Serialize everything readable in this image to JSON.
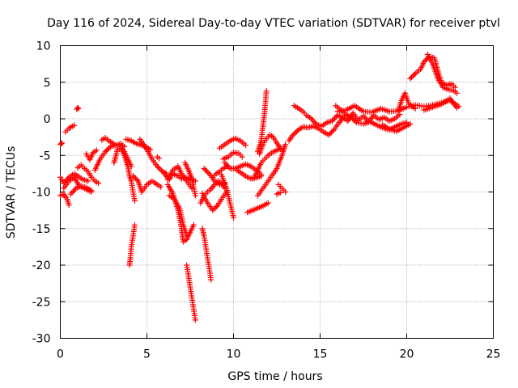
{
  "chart_data": {
    "type": "scatter",
    "title": "Day 116 of 2024, Sidereal Day-to-day VTEC variation (SDTVAR) for receiver ptvl",
    "xlabel": "GPS time / hours",
    "ylabel": "SDTVAR / TECUs",
    "xlim": [
      0,
      25
    ],
    "ylim": [
      -30,
      10
    ],
    "x_ticks": [
      "0",
      "5",
      "10",
      "15",
      "20",
      "25"
    ],
    "y_ticks": [
      "10",
      "5",
      "0",
      "-5",
      "-10",
      "-15",
      "-20",
      "-25",
      "-30"
    ],
    "grid": true,
    "marker": "+",
    "color": "#ff0000",
    "traces": [
      {
        "x": [
          0.0,
          0.05,
          0.1
        ],
        "y": [
          -3.5,
          -3.4,
          -3.3
        ]
      },
      {
        "x": [
          0.0,
          0.2,
          0.5,
          0.8,
          1.0,
          1.3,
          1.6
        ],
        "y": [
          -8.0,
          -8.8,
          -8.0,
          -7.5,
          -7.8,
          -8.3,
          -8.5
        ]
      },
      {
        "x": [
          0.0,
          0.2,
          0.4,
          0.5
        ],
        "y": [
          -10.5,
          -10.3,
          -11.0,
          -11.8
        ]
      },
      {
        "x": [
          0.2,
          0.5,
          0.8,
          1.1,
          1.4,
          1.8
        ],
        "y": [
          -9.5,
          -8.5,
          -8.0,
          -9.2,
          -9.5,
          -10.0
        ]
      },
      {
        "x": [
          0.6,
          0.9,
          1.2,
          1.5,
          1.8
        ],
        "y": [
          -10.3,
          -9.5,
          -9.2,
          -9.4,
          -9.8
        ]
      },
      {
        "x": [
          0.3,
          0.5,
          0.7,
          0.8
        ],
        "y": [
          -1.8,
          -1.3,
          -1.0,
          -0.9
        ]
      },
      {
        "x": [
          0.95,
          1.0,
          1.05
        ],
        "y": [
          1.3,
          1.5,
          1.4
        ]
      },
      {
        "x": [
          1.5,
          1.7,
          1.9,
          2.1
        ],
        "y": [
          -4.8,
          -5.6,
          -4.6,
          -4.3
        ]
      },
      {
        "x": [
          1.0,
          1.2,
          1.4,
          1.6,
          1.8,
          2.0,
          2.2
        ],
        "y": [
          -6.7,
          -6.3,
          -6.8,
          -7.2,
          -8.0,
          -8.5,
          -8.8
        ]
      },
      {
        "x": [
          2.0,
          2.3,
          2.6,
          2.9,
          3.2,
          3.5,
          3.7
        ],
        "y": [
          -7.0,
          -5.5,
          -4.5,
          -3.8,
          -3.6,
          -3.4,
          -3.8
        ]
      },
      {
        "x": [
          2.4,
          2.6,
          2.8,
          3.0,
          3.2
        ],
        "y": [
          -2.9,
          -2.6,
          -3.0,
          -3.3,
          -3.6
        ]
      },
      {
        "x": [
          3.1,
          3.3,
          3.5,
          3.7,
          3.9,
          4.1
        ],
        "y": [
          -6.0,
          -4.2,
          -3.8,
          -4.5,
          -5.5,
          -6.5
        ]
      },
      {
        "x": [
          3.5,
          3.7,
          3.9,
          4.0,
          4.1,
          4.2,
          4.3
        ],
        "y": [
          -4.0,
          -5.0,
          -6.5,
          -7.8,
          -8.5,
          -10.0,
          -11.2
        ]
      },
      {
        "x": [
          4.0,
          4.05,
          4.1,
          4.2,
          4.3
        ],
        "y": [
          -20.0,
          -19.0,
          -17.5,
          -16.0,
          -14.5
        ]
      },
      {
        "x": [
          3.8,
          4.1,
          4.4,
          4.7,
          5.0,
          5.2
        ],
        "y": [
          -2.8,
          -3.0,
          -3.4,
          -3.6,
          -3.9,
          -4.2
        ]
      },
      {
        "x": [
          4.2,
          4.5,
          4.7,
          5.0,
          5.3,
          5.6,
          5.8
        ],
        "y": [
          -7.8,
          -8.5,
          -10.0,
          -9.0,
          -8.5,
          -9.0,
          -9.3
        ]
      },
      {
        "x": [
          4.6,
          4.8,
          5.0,
          5.3,
          5.6,
          5.9,
          6.1
        ],
        "y": [
          -2.8,
          -3.5,
          -4.2,
          -5.5,
          -6.5,
          -7.2,
          -7.4
        ]
      },
      {
        "x": [
          5.6,
          5.7
        ],
        "y": [
          -5.2,
          -5.4
        ]
      },
      {
        "x": [
          6.0,
          6.3,
          6.5,
          6.8,
          7.0,
          7.2,
          7.5,
          7.8
        ],
        "y": [
          -7.5,
          -8.3,
          -7.5,
          -7.8,
          -8.2,
          -8.0,
          -8.3,
          -8.5
        ]
      },
      {
        "x": [
          6.2,
          6.5,
          6.8,
          7.0,
          7.3,
          7.6
        ],
        "y": [
          -8.3,
          -7.0,
          -6.5,
          -7.5,
          -8.5,
          -9.5
        ]
      },
      {
        "x": [
          6.2,
          6.5,
          6.8,
          7.0,
          7.1,
          7.3,
          7.5,
          7.7
        ],
        "y": [
          -9.0,
          -10.2,
          -12.5,
          -15.0,
          -16.8,
          -16.5,
          -15.5,
          -14.5
        ]
      },
      {
        "x": [
          6.3,
          6.6,
          6.9,
          7.1,
          7.3
        ],
        "y": [
          -10.5,
          -11.0,
          -12.3,
          -14.5,
          -16.0
        ]
      },
      {
        "x": [
          7.2,
          7.4,
          7.6,
          7.7,
          7.8
        ],
        "y": [
          -6.0,
          -7.0,
          -8.2,
          -9.3,
          -10.5
        ]
      },
      {
        "x": [
          7.3,
          7.4,
          7.5,
          7.6,
          7.7,
          7.8
        ],
        "y": [
          -20.0,
          -21.5,
          -23.0,
          -24.5,
          -26.0,
          -27.5
        ]
      },
      {
        "x": [
          8.1,
          8.3,
          8.5,
          8.7,
          8.9,
          9.1,
          9.3,
          9.5
        ],
        "y": [
          -11.5,
          -10.5,
          -10.0,
          -9.6,
          -9.0,
          -8.5,
          -8.8,
          -9.5
        ]
      },
      {
        "x": [
          8.2,
          8.3,
          8.4,
          8.5,
          8.6,
          8.7
        ],
        "y": [
          -15.0,
          -16.0,
          -17.5,
          -19.0,
          -20.5,
          -22.0
        ]
      },
      {
        "x": [
          8.2,
          8.5,
          8.8,
          9.1,
          9.3,
          9.6
        ],
        "y": [
          -10.2,
          -11.5,
          -12.5,
          -11.8,
          -11.0,
          -10.0
        ]
      },
      {
        "x": [
          8.3,
          8.6,
          8.9,
          9.2,
          9.5
        ],
        "y": [
          -6.8,
          -7.5,
          -8.5,
          -9.0,
          -8.8
        ]
      },
      {
        "x": [
          8.8,
          9.0,
          9.2,
          9.4,
          9.6
        ],
        "y": [
          -8.0,
          -7.5,
          -7.2,
          -6.8,
          -6.5
        ]
      },
      {
        "x": [
          9.2,
          9.5,
          9.8,
          10.1,
          10.4,
          10.7
        ],
        "y": [
          -4.0,
          -3.5,
          -3.0,
          -2.7,
          -3.0,
          -3.6
        ]
      },
      {
        "x": [
          9.3,
          9.6,
          9.8,
          10.0
        ],
        "y": [
          -7.6,
          -9.5,
          -11.5,
          -13.5
        ]
      },
      {
        "x": [
          9.4,
          9.7,
          10.0,
          10.3,
          10.5
        ],
        "y": [
          -5.5,
          -5.2,
          -4.6,
          -4.7,
          -5.2
        ]
      },
      {
        "x": [
          9.5,
          9.8,
          10.1,
          10.4,
          10.7,
          11.0,
          11.3,
          11.6
        ],
        "y": [
          -6.0,
          -6.8,
          -6.8,
          -6.5,
          -6.2,
          -6.5,
          -7.0,
          -7.6
        ]
      },
      {
        "x": [
          10.2,
          10.5,
          10.8,
          11.1,
          11.4,
          11.6
        ],
        "y": [
          -7.0,
          -7.5,
          -8.0,
          -8.2,
          -8.0,
          -7.8
        ]
      },
      {
        "x": [
          10.8,
          11.1,
          11.4,
          11.7,
          12.0
        ],
        "y": [
          -12.8,
          -12.5,
          -12.2,
          -11.9,
          -11.5
        ]
      },
      {
        "x": [
          11.2,
          11.4,
          11.6,
          11.8,
          12.0,
          12.3,
          12.6,
          12.9
        ],
        "y": [
          -8.0,
          -7.0,
          -6.0,
          -5.5,
          -5.0,
          -4.5,
          -4.2,
          -4.0
        ]
      },
      {
        "x": [
          11.4,
          11.6,
          11.7,
          11.8,
          11.9
        ],
        "y": [
          -4.5,
          -3.0,
          -1.0,
          1.0,
          3.8
        ]
      },
      {
        "x": [
          11.5,
          11.7,
          11.9,
          12.1,
          12.3,
          12.5,
          12.7
        ],
        "y": [
          -4.8,
          -3.5,
          -2.7,
          -2.2,
          -2.5,
          -3.3,
          -4.0
        ]
      },
      {
        "x": [
          11.4,
          11.7,
          12.0,
          12.3,
          12.5,
          12.8,
          13.0
        ],
        "y": [
          -10.5,
          -9.5,
          -8.5,
          -7.5,
          -6.8,
          -5.0,
          -3.5
        ]
      },
      {
        "x": [
          12.6,
          12.8,
          13.0
        ],
        "y": [
          -9.0,
          -9.5,
          -10.0
        ]
      },
      {
        "x": [
          12.5,
          12.7
        ],
        "y": [
          -10.3,
          -10.1
        ]
      },
      {
        "x": [
          13.2,
          13.4,
          13.7,
          14.0,
          14.3,
          14.6,
          14.9,
          15.2,
          15.5,
          15.8,
          16.1,
          16.4
        ],
        "y": [
          -3.0,
          -2.3,
          -1.6,
          -1.1,
          -1.2,
          -1.0,
          -1.3,
          -1.8,
          -2.2,
          -1.5,
          -0.5,
          0.3
        ]
      },
      {
        "x": [
          13.5,
          13.7,
          13.9,
          14.1
        ],
        "y": [
          1.8,
          1.5,
          1.2,
          0.8
        ]
      },
      {
        "x": [
          14.2,
          14.5,
          14.8,
          15.1,
          15.4,
          15.7,
          16.0,
          16.3,
          16.6,
          16.9,
          17.2,
          17.5,
          17.8,
          18.1,
          18.4,
          18.7,
          19.0,
          19.3,
          19.6
        ],
        "y": [
          0.5,
          0.0,
          -0.8,
          -1.0,
          -0.5,
          -0.3,
          0.5,
          0.2,
          -0.3,
          0.8,
          -0.2,
          0.4,
          -0.4,
          0.5,
          -0.1,
          0.2,
          -0.3,
          0.0,
          0.6
        ]
      },
      {
        "x": [
          16.0,
          16.5,
          17.0,
          17.5,
          18.0,
          18.5,
          19.0,
          19.5,
          20.0,
          20.5,
          21.0,
          21.5,
          22.0,
          22.5,
          23.0
        ],
        "y": [
          1.0,
          1.2,
          1.8,
          1.0,
          0.9,
          1.4,
          1.0,
          1.1,
          1.6,
          1.9,
          1.7,
          1.9,
          2.2,
          2.5,
          1.7
        ]
      },
      {
        "x": [
          15.9,
          16.2,
          16.5,
          16.8,
          17.1,
          17.5,
          17.9,
          18.3,
          18.7,
          19.0,
          19.4,
          19.7,
          20.0
        ],
        "y": [
          1.8,
          1.2,
          0.6,
          0.2,
          -0.5,
          -0.7,
          -0.4,
          -0.9,
          -1.3,
          -1.5,
          -1.0,
          -0.7,
          -0.5
        ]
      },
      {
        "x": [
          18.6,
          19.0,
          19.4,
          19.8,
          20.2
        ],
        "y": [
          -0.8,
          -1.4,
          -1.7,
          -1.2,
          -0.7
        ]
      },
      {
        "x": [
          19.5,
          19.7,
          19.9,
          20.1,
          20.3,
          20.5
        ],
        "y": [
          1.0,
          2.5,
          3.5,
          2.2,
          1.7,
          1.4
        ]
      },
      {
        "x": [
          20.2,
          20.5,
          20.8,
          21.0,
          21.3,
          21.6,
          21.8,
          22.0,
          22.3,
          22.6,
          22.8
        ],
        "y": [
          5.5,
          6.2,
          6.8,
          7.8,
          8.5,
          8.3,
          6.5,
          5.0,
          4.6,
          4.8,
          4.3
        ]
      },
      {
        "x": [
          21.2,
          21.5,
          21.8,
          22.1,
          22.4,
          22.7,
          22.9
        ],
        "y": [
          8.8,
          7.5,
          5.5,
          4.3,
          4.0,
          3.9,
          3.5
        ]
      },
      {
        "x": [
          21.0,
          21.5,
          22.0,
          22.5,
          22.9
        ],
        "y": [
          1.2,
          1.6,
          2.0,
          2.8,
          1.5
        ]
      }
    ]
  }
}
